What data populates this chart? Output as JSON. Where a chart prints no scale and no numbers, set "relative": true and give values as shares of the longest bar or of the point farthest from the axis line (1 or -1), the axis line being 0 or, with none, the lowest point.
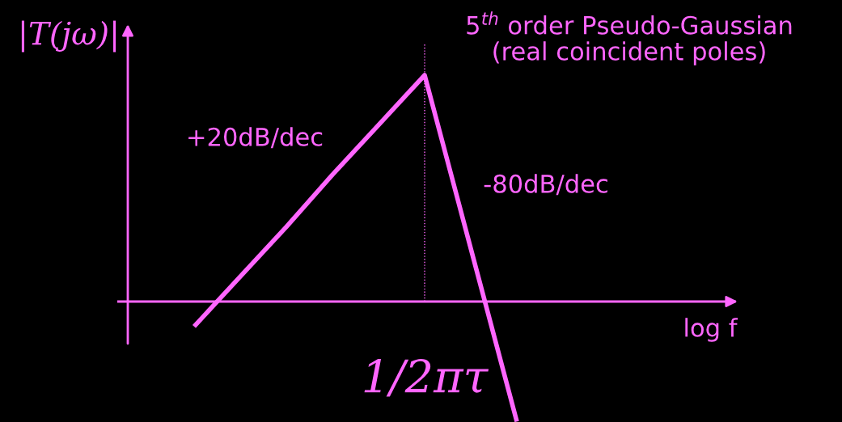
{
  "chart_data": {
    "type": "line",
    "relative": true,
    "title": "5$^{th}$ order Pseudo-Gaussian\n(real coincident poles)",
    "ylabel": "|T(jω)|",
    "categories": [
      null,
      null,
      null,
      null,
      null,
      null,
      null,
      null
    ],
    "series": [
      {
        "color": "#ff66ff",
        "values": [
          -0.11,
          0.11,
          0.33,
          0.56,
          0.78,
          1.0,
          0.235,
          -0.53
        ]
      }
    ],
    "ref_lines": [
      {
        "axis": "x",
        "label": "1/2πτ",
        "color": "#ff66ff",
        "line_style": "dotted"
      },
      {
        "axis": "y",
        "value": 0,
        "color": "#ff66ff",
        "line_style": "solid"
      }
    ],
    "annotations": [
      "+20dB/dec",
      "-80dB/dec",
      "log f"
    ],
    "marker": "none",
    "line_style": "solid"
  }
}
